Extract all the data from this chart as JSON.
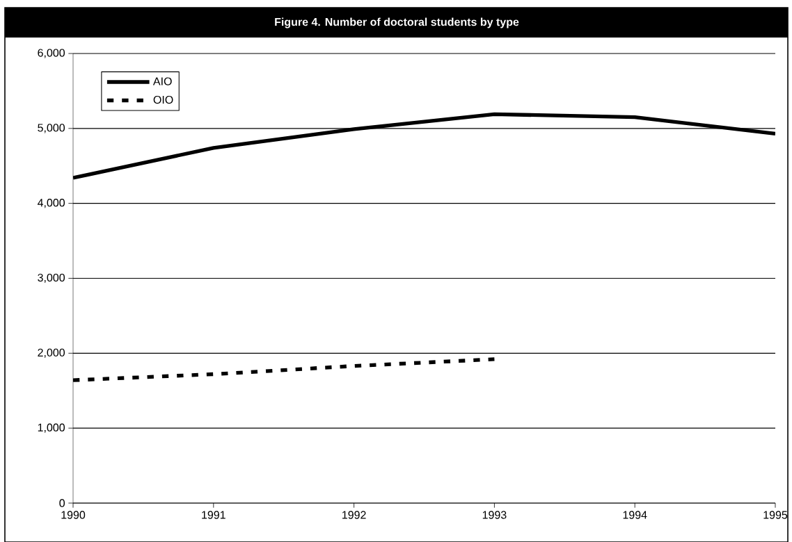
{
  "chart_data": {
    "type": "line",
    "title": "Figure 4. Number of doctoral students by type",
    "x": [
      1990,
      1991,
      1992,
      1993,
      1994,
      1995
    ],
    "series": [
      {
        "name": "AIO",
        "color": "#000000",
        "line_style": "solid",
        "values": [
          4340,
          4740,
          4990,
          5190,
          5150,
          4930
        ]
      },
      {
        "name": "OIO",
        "color": "#000000",
        "line_style": "dashed",
        "values": [
          1640,
          1720,
          1830,
          1920,
          null,
          null
        ]
      }
    ],
    "xlim": [
      1990,
      1995
    ],
    "xticks": [
      1990,
      1991,
      1992,
      1993,
      1994,
      1995
    ],
    "ylim": [
      0,
      6000
    ],
    "yticks": [
      {
        "value": 0,
        "label": "0"
      },
      {
        "value": 1000,
        "label": "1,000"
      },
      {
        "value": 2000,
        "label": "2,000"
      },
      {
        "value": 3000,
        "label": "3,000"
      },
      {
        "value": 4000,
        "label": "4,000"
      },
      {
        "value": 5000,
        "label": "5,000"
      },
      {
        "value": 6000,
        "label": "6,000"
      }
    ],
    "grid": "y",
    "legend": "top left",
    "marker": "none"
  }
}
